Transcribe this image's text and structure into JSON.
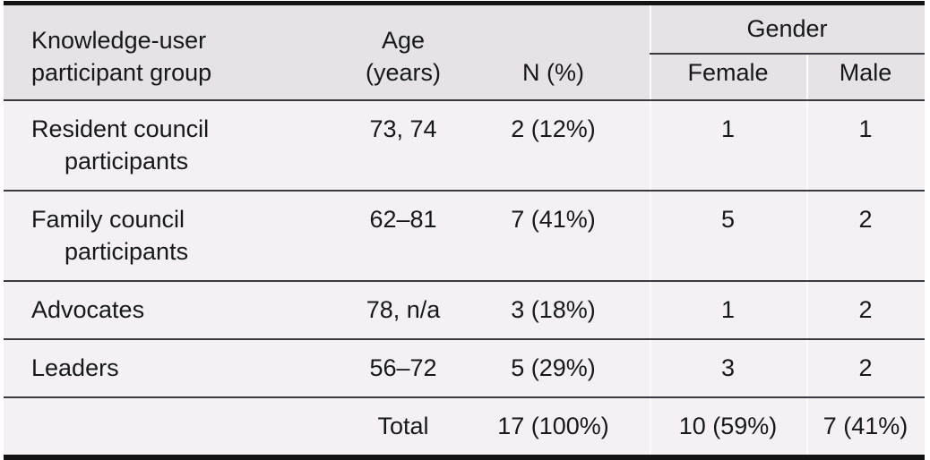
{
  "table": {
    "header": {
      "group_line1": "Knowledge-user",
      "group_line2": "participant group",
      "age_line1": "Age",
      "age_line2": "(years)",
      "n": "N (%)",
      "gender": "Gender",
      "female": "Female",
      "male": "Male"
    },
    "rows": [
      {
        "group_line1": "Resident council",
        "group_line2": "participants",
        "age": "73, 74",
        "n": "2 (12%)",
        "female": "1",
        "male": "1"
      },
      {
        "group_line1": "Family council",
        "group_line2": "participants",
        "age": "62–81",
        "n": "7 (41%)",
        "female": "5",
        "male": "2"
      },
      {
        "group_line1": "Advocates",
        "group_line2": "",
        "age": "78, n/a",
        "n": "3 (18%)",
        "female": "1",
        "male": "2"
      },
      {
        "group_line1": "Leaders",
        "group_line2": "",
        "age": "56–72",
        "n": "5 (29%)",
        "female": "3",
        "male": "2"
      }
    ],
    "total": {
      "label": "Total",
      "n": "17 (100%)",
      "female": "10 (59%)",
      "male": "7 (41%)"
    }
  },
  "colors": {
    "header_background": "#e7e2e6",
    "body_background": "#f5f0f4",
    "heavy_border": "#131313",
    "row_divider": "#3a3b42",
    "column_separator": "#fcfbfc",
    "text": "#15181c"
  }
}
